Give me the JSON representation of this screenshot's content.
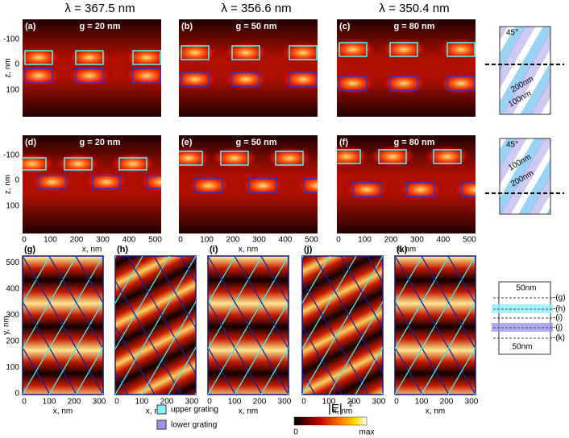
{
  "wavelengths": [
    "λ = 367.5 nm",
    "λ = 356.6 nm",
    "λ = 350.4 nm"
  ],
  "panels": [
    {
      "label": "(a)",
      "gap": "g = 20 nm"
    },
    {
      "label": "(b)",
      "gap": "g = 50 nm"
    },
    {
      "label": "(c)",
      "gap": "g = 80 nm"
    },
    {
      "label": "(d)",
      "gap": "g = 20 nm"
    },
    {
      "label": "(e)",
      "gap": "g = 50 nm"
    },
    {
      "label": "(f)",
      "gap": "g = 80 nm"
    }
  ],
  "bottom_panels": [
    "(g)",
    "(h)",
    "(i)",
    "(j)",
    "(k)"
  ],
  "axes": {
    "z_label": "z, nm",
    "x_label": "x, nm",
    "y_label": "y, nm",
    "z_ticks": [
      "-100",
      "0",
      "100"
    ],
    "x_ticks": [
      "0",
      "100",
      "200",
      "300",
      "400",
      "500"
    ],
    "xy_ticks": [
      "0",
      "100",
      "200",
      "300"
    ],
    "y_ticks": [
      "0",
      "100",
      "200",
      "300",
      "400",
      "500"
    ]
  },
  "legend": {
    "upper": "upper grating",
    "lower": "lower grating",
    "colorbar_title": "|E|",
    "colorbar_sup": "2",
    "min": "0",
    "max": "max"
  },
  "insets": {
    "angle": "45°",
    "long": "200nm",
    "short": "100nm",
    "spacing": "50nm",
    "levels": [
      "-(g)",
      "-(h)",
      "-(i)",
      "-(j)",
      "-(k)"
    ]
  }
}
